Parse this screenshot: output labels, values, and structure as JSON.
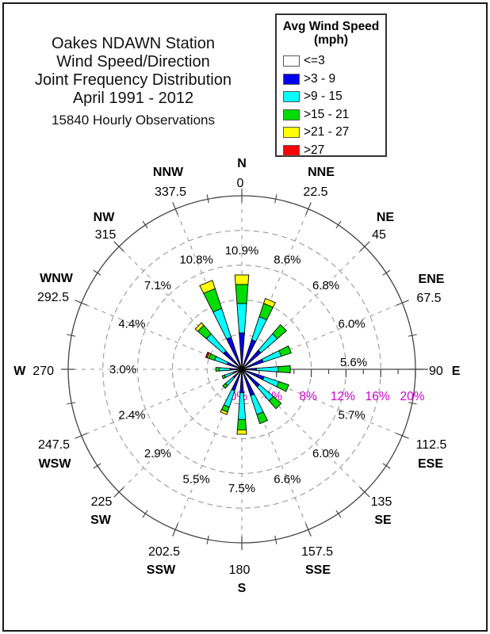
{
  "header": {
    "lines": [
      "Oakes NDAWN Station",
      "Wind Speed/Direction",
      "Joint Frequency Distribution",
      "April 1991 - 2012"
    ],
    "subtitle": "15840 Hourly Observations"
  },
  "legend": {
    "title_line1": "Avg Wind Speed",
    "title_line2": "(mph)",
    "items": [
      {
        "label": "<=3",
        "color": "#FFFFFF"
      },
      {
        "label": ">3 - 9",
        "color": "#0000EE"
      },
      {
        "label": ">9 - 15",
        "color": "#00FFFF"
      },
      {
        "label": ">15 - 21",
        "color": "#00DD00"
      },
      {
        "label": ">21 - 27",
        "color": "#FFFF00"
      },
      {
        "label": ">27",
        "color": "#FF0000"
      }
    ]
  },
  "chart_data": {
    "type": "windrose",
    "title": "Oakes NDAWN Station Wind Speed/Direction Joint Frequency Distribution, April 1991 - 2012",
    "observations": 15840,
    "units": "percent frequency of hourly observations",
    "max_percent": 20,
    "ring_ticks_percent": [
      4,
      8,
      12,
      16,
      20
    ],
    "radial_tick_labels": [
      "0%",
      "4%",
      "8%",
      "12%",
      "16%",
      "20%"
    ],
    "radial_tick_color": "#CC00CC",
    "grid_color": "#999999",
    "outline_color": "#444444",
    "speed_bins": [
      {
        "label": "<=3",
        "color": "#FFFFFF"
      },
      {
        "label": ">3 - 9",
        "color": "#0000EE"
      },
      {
        "label": ">9 - 15",
        "color": "#00FFFF"
      },
      {
        "label": ">15 - 21",
        "color": "#00DD00"
      },
      {
        "label": ">21 - 27",
        "color": "#FFFF00"
      },
      {
        "label": ">27",
        "color": "#FF0000"
      }
    ],
    "directions": [
      {
        "name": "N",
        "degrees": "0",
        "total_label": "10.9%",
        "by_speed_bin": [
          0,
          4.2,
          3.4,
          2.2,
          1.1,
          0
        ]
      },
      {
        "name": "NNE",
        "degrees": "22.5",
        "total_label": "8.6%",
        "by_speed_bin": [
          0,
          3.6,
          2.8,
          1.6,
          0.6,
          0
        ]
      },
      {
        "name": "NE",
        "degrees": "45",
        "total_label": "6.8%",
        "by_speed_bin": [
          0,
          2.9,
          2.5,
          1.4,
          0,
          0
        ]
      },
      {
        "name": "ENE",
        "degrees": "67.5",
        "total_label": "6.0%",
        "by_speed_bin": [
          0,
          2.6,
          2.2,
          1.2,
          0,
          0
        ]
      },
      {
        "name": "E",
        "degrees": "90",
        "total_label": "5.6%",
        "by_speed_bin": [
          0,
          1.7,
          2.5,
          1.4,
          0,
          0
        ]
      },
      {
        "name": "ESE",
        "degrees": "112.5",
        "total_label": "5.7%",
        "by_speed_bin": [
          0,
          2.7,
          1.8,
          1.2,
          0,
          0
        ]
      },
      {
        "name": "SE",
        "degrees": "135",
        "total_label": "6.0%",
        "by_speed_bin": [
          0,
          2.7,
          2.1,
          1.2,
          0,
          0
        ]
      },
      {
        "name": "SSE",
        "degrees": "157.5",
        "total_label": "6.6%",
        "by_speed_bin": [
          0,
          3.2,
          2.3,
          1.1,
          0,
          0
        ]
      },
      {
        "name": "S",
        "degrees": "180",
        "total_label": "7.5%",
        "by_speed_bin": [
          0,
          2.7,
          3.1,
          1.2,
          0.5,
          0
        ]
      },
      {
        "name": "SSW",
        "degrees": "202.5",
        "total_label": "5.5%",
        "by_speed_bin": [
          0,
          2.6,
          2.0,
          0.6,
          0.3,
          0
        ]
      },
      {
        "name": "SW",
        "degrees": "225",
        "total_label": "2.9%",
        "by_speed_bin": [
          0,
          1.3,
          1.2,
          0.4,
          0,
          0
        ]
      },
      {
        "name": "WSW",
        "degrees": "247.5",
        "total_label": "2.4%",
        "by_speed_bin": [
          0,
          1.0,
          1.1,
          0.3,
          0,
          0
        ]
      },
      {
        "name": "W",
        "degrees": "270",
        "total_label": "3.0%",
        "by_speed_bin": [
          0,
          1.4,
          1.2,
          0.4,
          0,
          0
        ]
      },
      {
        "name": "WNW",
        "degrees": "292.5",
        "total_label": "4.4%",
        "by_speed_bin": [
          0,
          1.8,
          1.5,
          0.7,
          0.2,
          0.2
        ]
      },
      {
        "name": "NW",
        "degrees": "315",
        "total_label": "7.1%",
        "by_speed_bin": [
          0,
          2.8,
          2.6,
          1.3,
          0.4,
          0
        ]
      },
      {
        "name": "NNW",
        "degrees": "337.5",
        "total_label": "10.8%",
        "by_speed_bin": [
          0,
          3.9,
          3.5,
          2.4,
          1.0,
          0
        ]
      }
    ]
  }
}
